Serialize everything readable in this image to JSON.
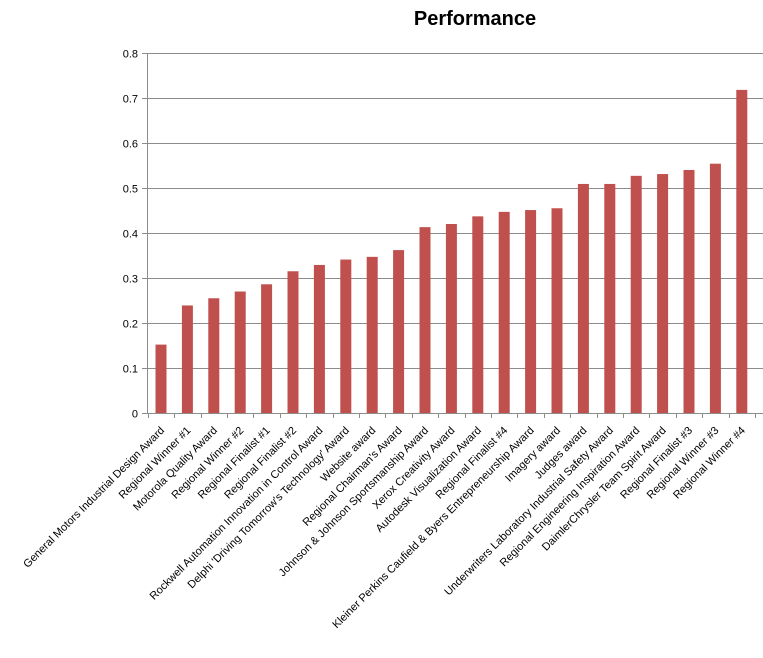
{
  "chart_data": {
    "type": "bar",
    "title": "Performance",
    "xlabel": "",
    "ylabel": "",
    "ylim": [
      0,
      0.8
    ],
    "yticks": [
      "0",
      "0.1",
      "0.2",
      "0.3",
      "0.4",
      "0.5",
      "0.6",
      "0.7",
      "0.8"
    ],
    "grid": true,
    "legend": "none",
    "bar_color": "#c0504d",
    "categories": [
      "General Motors Industrial Design Award",
      "Regional Winner #1",
      "Motorola Quality  Award",
      "Regional Winner #2",
      "Regional Finalist #1",
      "Regional Finalist #2",
      "Rockwell Automation Innovation in Control Award",
      "Delphi 'Driving Tomorrow's Technology' Award",
      "Website award",
      "Regional Chairman's Award",
      "Johnson & Johnson Sportsmanship  Award",
      "Xerox Creativity Award",
      "Autodesk Visualization  Award",
      "Regional Finalist #4",
      "Kleiner Perkins Caufield & Byers Entrepreneurship Award",
      "Imagery award",
      "Judges award",
      "Underwriters Laboratory Industrial Safety Award",
      "Regional Engineering Inspiration Award",
      "DaimlerChrysler Team Spirit Award",
      "Regional Finalist #3",
      "Regional Winner #3",
      "Regional Winner #4"
    ],
    "values": [
      0.152,
      0.239,
      0.255,
      0.27,
      0.286,
      0.315,
      0.329,
      0.341,
      0.347,
      0.362,
      0.413,
      0.42,
      0.437,
      0.447,
      0.451,
      0.455,
      0.509,
      0.509,
      0.527,
      0.531,
      0.54,
      0.554,
      0.718
    ]
  }
}
